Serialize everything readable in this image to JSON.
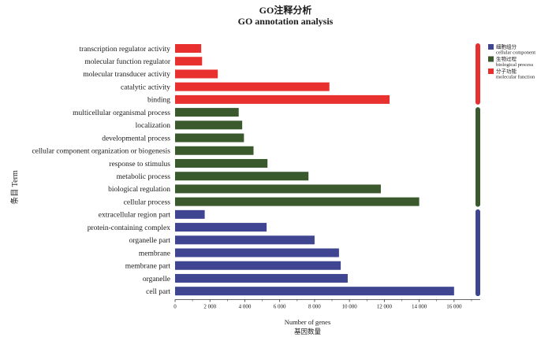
{
  "chart_data": {
    "type": "bar",
    "orientation": "horizontal",
    "title": "GO注释分析",
    "subtitle": "GO annotation analysis",
    "xlabel": "Number of genes",
    "xlabel_cn": "基因数量",
    "ylabel": "条目 Term",
    "xlim": [
      0,
      17500
    ],
    "xticks": [
      0,
      2000,
      4000,
      6000,
      8000,
      10000,
      12000,
      14000,
      16000
    ],
    "xtick_labels": [
      "0",
      "2 000",
      "4 000",
      "6 000",
      "8 000",
      "10 000",
      "12 000",
      "14 000",
      "16 000"
    ],
    "grid": false,
    "legend_position": "top-right",
    "colors": {
      "cellular_component": "#3f4590",
      "biological_process": "#3a5a2e",
      "molecular_function": "#e8302f"
    },
    "legend": [
      {
        "key": "cellular_component",
        "cn": "细胞组分",
        "en": "cellular component"
      },
      {
        "key": "biological_process",
        "cn": "生物过程",
        "en": "biological process"
      },
      {
        "key": "molecular_function",
        "cn": "分子功能",
        "en": "molecular function"
      }
    ],
    "categories": [
      {
        "label": "transcription regulator activity",
        "value": 1500,
        "group": "molecular_function"
      },
      {
        "label": "molecular function regulator",
        "value": 1550,
        "group": "molecular_function"
      },
      {
        "label": "molecular transducer activity",
        "value": 2450,
        "group": "molecular_function"
      },
      {
        "label": "catalytic activity",
        "value": 8850,
        "group": "molecular_function"
      },
      {
        "label": "binding",
        "value": 12300,
        "group": "molecular_function"
      },
      {
        "label": "multicellular organismal process",
        "value": 3650,
        "group": "biological_process"
      },
      {
        "label": "localization",
        "value": 3850,
        "group": "biological_process"
      },
      {
        "label": "developmental process",
        "value": 3950,
        "group": "biological_process"
      },
      {
        "label": "cellular component organization or biogenesis",
        "value": 4500,
        "group": "biological_process"
      },
      {
        "label": "response to stimulus",
        "value": 5300,
        "group": "biological_process"
      },
      {
        "label": "metabolic process",
        "value": 7650,
        "group": "biological_process"
      },
      {
        "label": "biological regulation",
        "value": 11800,
        "group": "biological_process"
      },
      {
        "label": "cellular process",
        "value": 14000,
        "group": "biological_process"
      },
      {
        "label": "extracellular region part",
        "value": 1700,
        "group": "cellular_component"
      },
      {
        "label": "protein-containing complex",
        "value": 5250,
        "group": "cellular_component"
      },
      {
        "label": "organelle part",
        "value": 8000,
        "group": "cellular_component"
      },
      {
        "label": "membrane",
        "value": 9400,
        "group": "cellular_component"
      },
      {
        "label": "membrane part",
        "value": 9500,
        "group": "cellular_component"
      },
      {
        "label": "organelle",
        "value": 9900,
        "group": "cellular_component"
      },
      {
        "label": "cell part",
        "value": 16000,
        "group": "cellular_component"
      }
    ]
  }
}
